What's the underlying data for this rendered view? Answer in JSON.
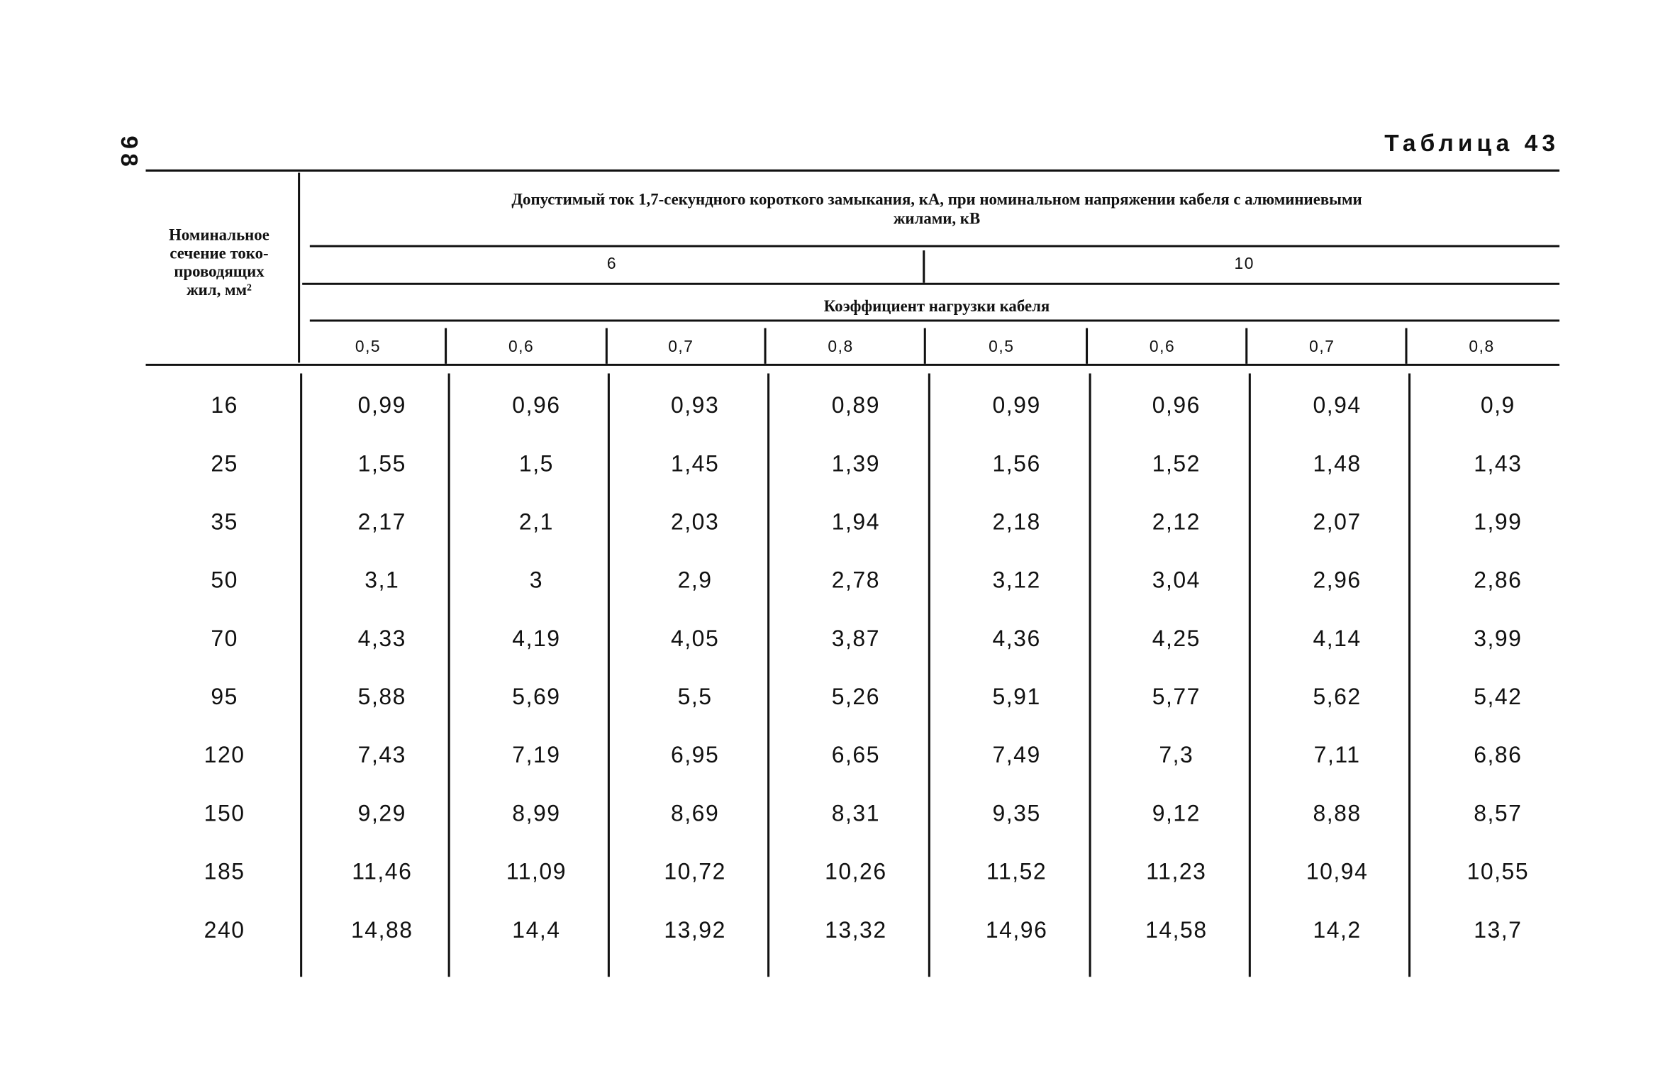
{
  "page_number": "98",
  "table": {
    "title": "Таблица 43",
    "row_header": [
      "Номинальное",
      "сечение токо-",
      "проводящих",
      "жил, мм²"
    ],
    "group_header": [
      "Допустимый ток 1,7-секундного короткого замыкания, кА, при номинальном напряжении  кабеля с алюминиевыми",
      "жилами, кВ"
    ],
    "voltages": [
      "6",
      "10"
    ],
    "load_header": "Коэффициент нагрузки кабеля",
    "coefficients": [
      "0,5",
      "0,6",
      "0,7",
      "0,8",
      "0,5",
      "0,6",
      "0,7",
      "0,8"
    ],
    "rows": [
      [
        "16",
        "0,99",
        "0,96",
        "0,93",
        "0,89",
        "0,99",
        "0,96",
        "0,94",
        "0,9"
      ],
      [
        "25",
        "1,55",
        "1,5",
        "1,45",
        "1,39",
        "1,56",
        "1,52",
        "1,48",
        "1,43"
      ],
      [
        "35",
        "2,17",
        "2,1",
        "2,03",
        "1,94",
        "2,18",
        "2,12",
        "2,07",
        "1,99"
      ],
      [
        "50",
        "3,1",
        "3",
        "2,9",
        "2,78",
        "3,12",
        "3,04",
        "2,96",
        "2,86"
      ],
      [
        "70",
        "4,33",
        "4,19",
        "4,05",
        "3,87",
        "4,36",
        "4,25",
        "4,14",
        "3,99"
      ],
      [
        "95",
        "5,88",
        "5,69",
        "5,5",
        "5,26",
        "5,91",
        "5,77",
        "5,62",
        "5,42"
      ],
      [
        "120",
        "7,43",
        "7,19",
        "6,95",
        "6,65",
        "7,49",
        "7,3",
        "7,11",
        "6,86"
      ],
      [
        "150",
        "9,29",
        "8,99",
        "8,69",
        "8,31",
        "9,35",
        "9,12",
        "8,88",
        "8,57"
      ],
      [
        "185",
        "11,46",
        "11,09",
        "10,72",
        "10,26",
        "11,52",
        "11,23",
        "10,94",
        "10,55"
      ],
      [
        "240",
        "14,88",
        "14,4",
        "13,92",
        "13,32",
        "14,96",
        "14,58",
        "14,2",
        "13,7"
      ]
    ]
  }
}
